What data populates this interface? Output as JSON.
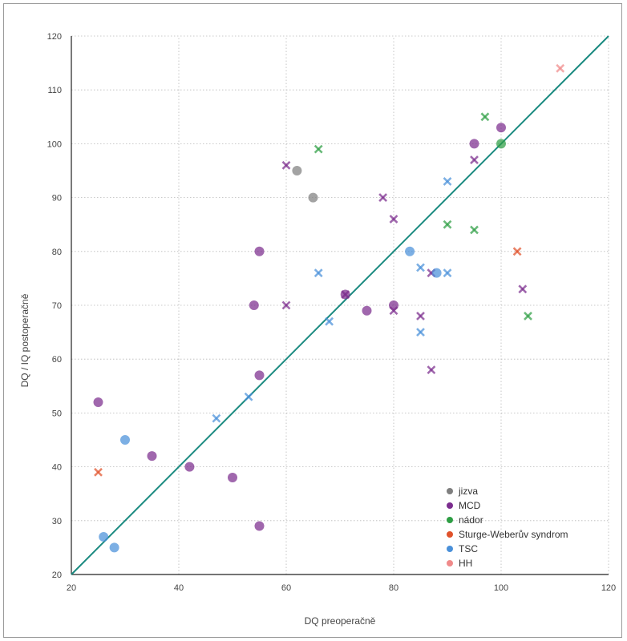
{
  "chart_data": {
    "type": "scatter",
    "xlabel": "DQ preoperačně",
    "ylabel": "DQ / IQ postoperačně",
    "xlim": [
      20,
      120
    ],
    "ylim": [
      20,
      120
    ],
    "x_ticks": [
      "20",
      "40",
      "60",
      "80",
      "100",
      "120"
    ],
    "y_ticks": [
      "20",
      "30",
      "40",
      "50",
      "60",
      "70",
      "80",
      "90",
      "100",
      "110",
      "120"
    ],
    "grid": "dotted",
    "reference_line": {
      "from": [
        20,
        20
      ],
      "to": [
        120,
        120
      ],
      "color": "#1a8a80"
    },
    "legend_position": "bottom-right",
    "marker_note": "circle and cross markers",
    "series": [
      {
        "name": "jizva",
        "color": "#7f7f7f",
        "circles": [
          [
            62,
            95
          ],
          [
            65,
            90
          ]
        ],
        "crosses": []
      },
      {
        "name": "MCD",
        "color": "#7b2d8e",
        "circles": [
          [
            25,
            52
          ],
          [
            35,
            42
          ],
          [
            42,
            40
          ],
          [
            50,
            38
          ],
          [
            54,
            70
          ],
          [
            55,
            80
          ],
          [
            55,
            57
          ],
          [
            55,
            29
          ],
          [
            71,
            72
          ],
          [
            75,
            69
          ],
          [
            80,
            70
          ],
          [
            95,
            100
          ],
          [
            100,
            103
          ]
        ],
        "crosses": [
          [
            60,
            96
          ],
          [
            60,
            70
          ],
          [
            71,
            72
          ],
          [
            78,
            90
          ],
          [
            80,
            86
          ],
          [
            80,
            69
          ],
          [
            85,
            68
          ],
          [
            87,
            58
          ],
          [
            87,
            76
          ],
          [
            95,
            97
          ],
          [
            104,
            73
          ]
        ]
      },
      {
        "name": "nádor",
        "color": "#2e9e44",
        "circles": [
          [
            100,
            100
          ]
        ],
        "crosses": [
          [
            66,
            99
          ],
          [
            90,
            85
          ],
          [
            95,
            84
          ],
          [
            97,
            105
          ],
          [
            105,
            68
          ]
        ]
      },
      {
        "name": "Sturge-Weberův syndrom",
        "color": "#e0522b",
        "circles": [],
        "crosses": [
          [
            25,
            39
          ],
          [
            103,
            80
          ]
        ]
      },
      {
        "name": "TSC",
        "color": "#4a90d9",
        "circles": [
          [
            26,
            27
          ],
          [
            28,
            25
          ],
          [
            30,
            45
          ],
          [
            83,
            80
          ],
          [
            88,
            76
          ]
        ],
        "crosses": [
          [
            47,
            49
          ],
          [
            53,
            53
          ],
          [
            66,
            76
          ],
          [
            68,
            67
          ],
          [
            85,
            77
          ],
          [
            85,
            65
          ],
          [
            90,
            93
          ],
          [
            90,
            76
          ]
        ]
      },
      {
        "name": "HH",
        "color": "#f08a8a",
        "circles": [],
        "crosses": [
          [
            111,
            114
          ]
        ]
      }
    ]
  }
}
